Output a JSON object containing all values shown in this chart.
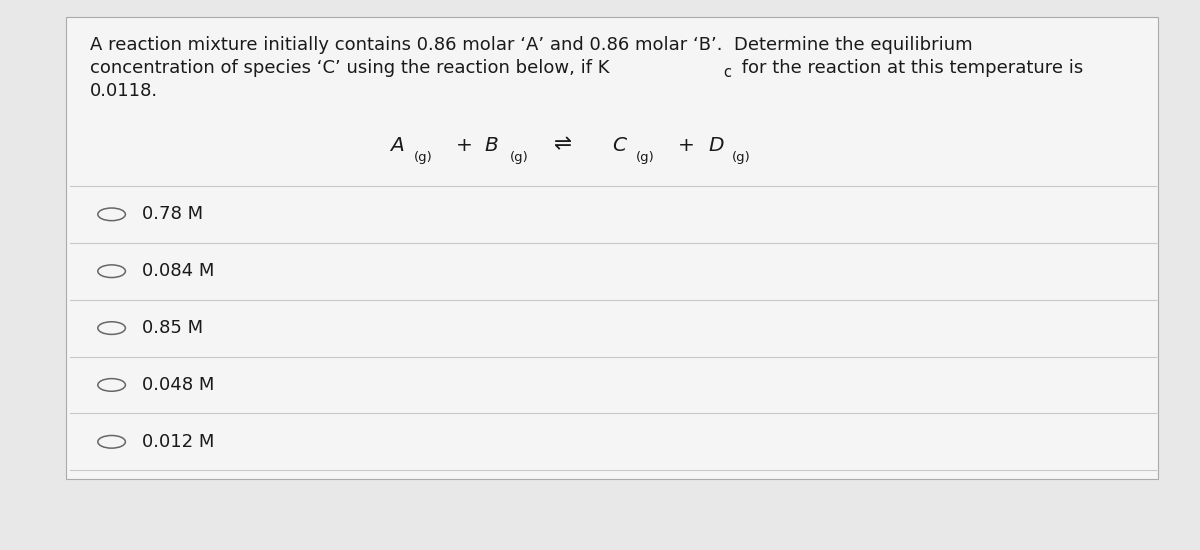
{
  "background_color": "#e8e8e8",
  "panel_color": "#f5f5f5",
  "text_color": "#1a1a1a",
  "divider_color": "#c8c8c8",
  "circle_color": "#666666",
  "q_line1": "A reaction mixture initially contains 0.86 molar ‘A’ and 0.86 molar ‘B’.  Determine the equilibrium",
  "q_line2a": "concentration of species ‘C’ using the reaction below, if K",
  "q_line2b": "c",
  "q_line2c": " for the reaction at this temperature is",
  "q_line3": "0.0118.",
  "options": [
    "0.78 M",
    "0.084 M",
    "0.85 M",
    "0.048 M",
    "0.012 M"
  ],
  "text_fontsize": 13.0,
  "option_fontsize": 13.0,
  "reaction_fontsize": 14.5,
  "reaction_sub_fontsize": 9.5
}
